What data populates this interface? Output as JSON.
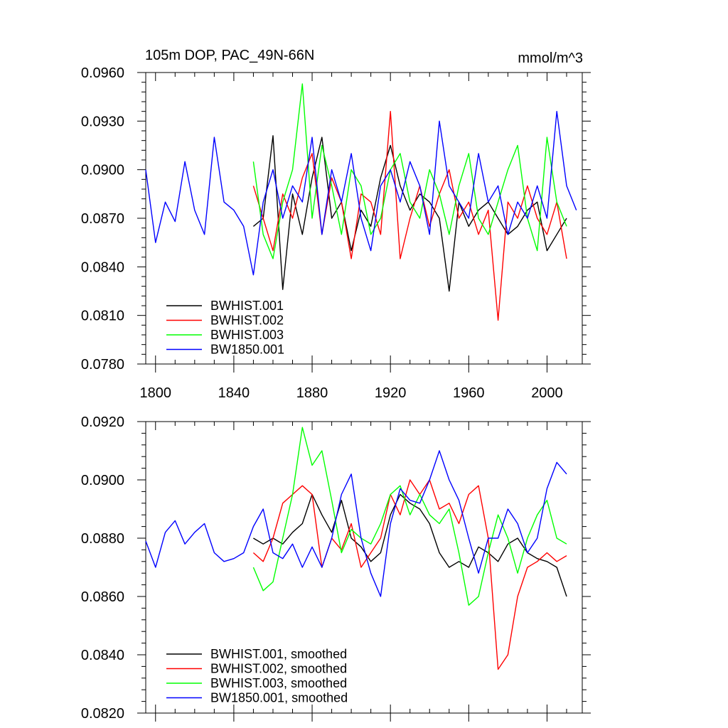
{
  "figure": {
    "title": "105m DOP, PAC_49N-66N",
    "units": "mmol/m^3"
  },
  "colors": {
    "BWHIST.001": "#000000",
    "BWHIST.002": "#ff0000",
    "BWHIST.003": "#00ff00",
    "BW1850.001": "#0000ff"
  },
  "chart_data": [
    {
      "type": "line",
      "panel": "top",
      "title": "105m DOP, PAC_49N-66N",
      "units_label": "mmol/m^3",
      "xlabel": "",
      "ylabel": "",
      "xlim": [
        1795,
        2018
      ],
      "ylim": [
        0.078,
        0.096
      ],
      "x_ticks": [
        1800,
        1840,
        1880,
        1920,
        1960,
        2000
      ],
      "x_tick_labels": [
        "1800",
        "1840",
        "1880",
        "1920",
        "1960",
        "2000"
      ],
      "x_minor_step": 10,
      "y_ticks": [
        0.078,
        0.081,
        0.084,
        0.087,
        0.09,
        0.093,
        0.096
      ],
      "y_tick_labels": [
        "0.0780",
        "0.0810",
        "0.0840",
        "0.0870",
        "0.0900",
        "0.0930",
        "0.0960"
      ],
      "legend_position": "bottom-left",
      "legend": [
        "BWHIST.001",
        "BWHIST.002",
        "BWHIST.003",
        "BW1850.001"
      ],
      "series": [
        {
          "name": "BWHIST.001",
          "x_start": 1850,
          "x_step": 5,
          "values": [
            0.0865,
            0.087,
            0.0921,
            0.0826,
            0.0885,
            0.086,
            0.0895,
            0.092,
            0.087,
            0.088,
            0.085,
            0.0875,
            0.0865,
            0.0895,
            0.0915,
            0.089,
            0.0875,
            0.0885,
            0.088,
            0.087,
            0.0825,
            0.088,
            0.0865,
            0.0875,
            0.088,
            0.087,
            0.086,
            0.0865,
            0.0875,
            0.088,
            0.085,
            0.086,
            0.087
          ]
        },
        {
          "name": "BWHIST.002",
          "x_start": 1850,
          "x_step": 5,
          "values": [
            0.089,
            0.087,
            0.085,
            0.0885,
            0.087,
            0.0895,
            0.091,
            0.086,
            0.0895,
            0.088,
            0.0845,
            0.0885,
            0.088,
            0.086,
            0.0936,
            0.0845,
            0.087,
            0.089,
            0.0865,
            0.0885,
            0.09,
            0.087,
            0.088,
            0.086,
            0.0875,
            0.0807,
            0.088,
            0.087,
            0.089,
            0.087,
            0.086,
            0.088,
            0.0845
          ]
        },
        {
          "name": "BWHIST.003",
          "x_start": 1850,
          "x_step": 5,
          "values": [
            0.0905,
            0.086,
            0.0845,
            0.088,
            0.09,
            0.0953,
            0.087,
            0.0915,
            0.089,
            0.086,
            0.09,
            0.089,
            0.086,
            0.087,
            0.09,
            0.091,
            0.088,
            0.087,
            0.09,
            0.0885,
            0.086,
            0.089,
            0.091,
            0.087,
            0.086,
            0.088,
            0.09,
            0.0915,
            0.087,
            0.085,
            0.092,
            0.088,
            0.0865
          ]
        },
        {
          "name": "BW1850.001",
          "x_start": 1795,
          "x_step": 5,
          "values": [
            0.09,
            0.0855,
            0.088,
            0.0868,
            0.0905,
            0.0875,
            0.086,
            0.092,
            0.088,
            0.0875,
            0.0865,
            0.0835,
            0.088,
            0.09,
            0.087,
            0.089,
            0.088,
            0.092,
            0.086,
            0.09,
            0.088,
            0.091,
            0.087,
            0.085,
            0.089,
            0.09,
            0.088,
            0.0905,
            0.089,
            0.086,
            0.093,
            0.089,
            0.088,
            0.087,
            0.091,
            0.088,
            0.089,
            0.086,
            0.088,
            0.087,
            0.089,
            0.087,
            0.0936,
            0.089,
            0.0875
          ]
        }
      ]
    },
    {
      "type": "line",
      "panel": "bottom",
      "title": "",
      "xlabel": "",
      "ylabel": "",
      "xlim": [
        1795,
        2018
      ],
      "ylim": [
        0.082,
        0.092
      ],
      "x_ticks": [
        1800,
        1840,
        1880,
        1920,
        1960,
        2000
      ],
      "x_tick_labels": [],
      "x_minor_step": 10,
      "y_ticks": [
        0.082,
        0.084,
        0.086,
        0.088,
        0.09,
        0.092
      ],
      "y_tick_labels": [
        "0.0820",
        "0.0840",
        "0.0860",
        "0.0880",
        "0.0900",
        "0.0920"
      ],
      "legend_position": "bottom-left",
      "legend": [
        "BWHIST.001, smoothed",
        "BWHIST.002, smoothed",
        "BWHIST.003, smoothed",
        "BW1850.001, smoothed"
      ],
      "series": [
        {
          "name": "BWHIST.001, smoothed",
          "x": [
            1850,
            1855,
            1860,
            1865,
            1870,
            1875,
            1880,
            1885,
            1890,
            1895,
            1900,
            1905,
            1910,
            1915,
            1920,
            1925,
            1930,
            1935,
            1940,
            1945,
            1950,
            1955,
            1960,
            1965,
            1970,
            1975,
            1980,
            1985,
            1990,
            1995,
            2000,
            2005,
            2010
          ],
          "values": [
            0.088,
            0.0878,
            0.088,
            0.0878,
            0.0882,
            0.0885,
            0.0895,
            0.0888,
            0.0882,
            0.0893,
            0.088,
            0.0877,
            0.0872,
            0.0875,
            0.0888,
            0.0895,
            0.0892,
            0.089,
            0.0885,
            0.0875,
            0.087,
            0.0872,
            0.087,
            0.0877,
            0.0875,
            0.0872,
            0.0878,
            0.088,
            0.0875,
            0.0873,
            0.0872,
            0.087,
            0.086
          ]
        },
        {
          "name": "BWHIST.002, smoothed",
          "x": [
            1850,
            1855,
            1860,
            1865,
            1870,
            1875,
            1880,
            1885,
            1890,
            1895,
            1900,
            1905,
            1910,
            1915,
            1920,
            1925,
            1930,
            1935,
            1940,
            1945,
            1950,
            1955,
            1960,
            1965,
            1970,
            1975,
            1980,
            1985,
            1990,
            1995,
            2000,
            2005,
            2010
          ],
          "values": [
            0.0875,
            0.0872,
            0.088,
            0.0892,
            0.0895,
            0.0898,
            0.0895,
            0.087,
            0.088,
            0.0876,
            0.0885,
            0.087,
            0.0875,
            0.088,
            0.0895,
            0.0888,
            0.09,
            0.0895,
            0.09,
            0.089,
            0.0892,
            0.0885,
            0.0895,
            0.0898,
            0.088,
            0.0835,
            0.084,
            0.086,
            0.087,
            0.0872,
            0.0875,
            0.0872,
            0.0874
          ]
        },
        {
          "name": "BWHIST.003, smoothed",
          "x": [
            1850,
            1855,
            1860,
            1865,
            1870,
            1875,
            1880,
            1885,
            1890,
            1895,
            1900,
            1905,
            1910,
            1915,
            1920,
            1925,
            1930,
            1935,
            1940,
            1945,
            1950,
            1955,
            1960,
            1965,
            1970,
            1975,
            1980,
            1985,
            1990,
            1995,
            2000,
            2005,
            2010
          ],
          "values": [
            0.087,
            0.0862,
            0.0865,
            0.088,
            0.0895,
            0.0918,
            0.0905,
            0.091,
            0.0893,
            0.0875,
            0.0883,
            0.088,
            0.0878,
            0.0885,
            0.0895,
            0.0898,
            0.0888,
            0.0895,
            0.0888,
            0.0885,
            0.089,
            0.0875,
            0.0857,
            0.086,
            0.0875,
            0.0888,
            0.088,
            0.0868,
            0.088,
            0.0888,
            0.0893,
            0.088,
            0.0878
          ]
        },
        {
          "name": "BW1850.001, smoothed",
          "x": [
            1795,
            1800,
            1805,
            1810,
            1815,
            1820,
            1825,
            1830,
            1835,
            1840,
            1845,
            1850,
            1855,
            1860,
            1865,
            1870,
            1875,
            1880,
            1885,
            1890,
            1895,
            1900,
            1905,
            1910,
            1915,
            1920,
            1925,
            1930,
            1935,
            1940,
            1945,
            1950,
            1955,
            1960,
            1965,
            1970,
            1975,
            1980,
            1985,
            1990,
            1995,
            2000,
            2005,
            2010
          ],
          "values": [
            0.0879,
            0.087,
            0.0882,
            0.0886,
            0.0878,
            0.0882,
            0.0885,
            0.0875,
            0.0872,
            0.0873,
            0.0875,
            0.0884,
            0.089,
            0.0875,
            0.0873,
            0.0878,
            0.087,
            0.0877,
            0.087,
            0.088,
            0.0895,
            0.0902,
            0.088,
            0.0868,
            0.086,
            0.0885,
            0.0897,
            0.0893,
            0.0892,
            0.09,
            0.091,
            0.09,
            0.0893,
            0.088,
            0.0868,
            0.088,
            0.088,
            0.089,
            0.0885,
            0.0875,
            0.088,
            0.0897,
            0.0906,
            0.0902
          ]
        }
      ]
    }
  ]
}
